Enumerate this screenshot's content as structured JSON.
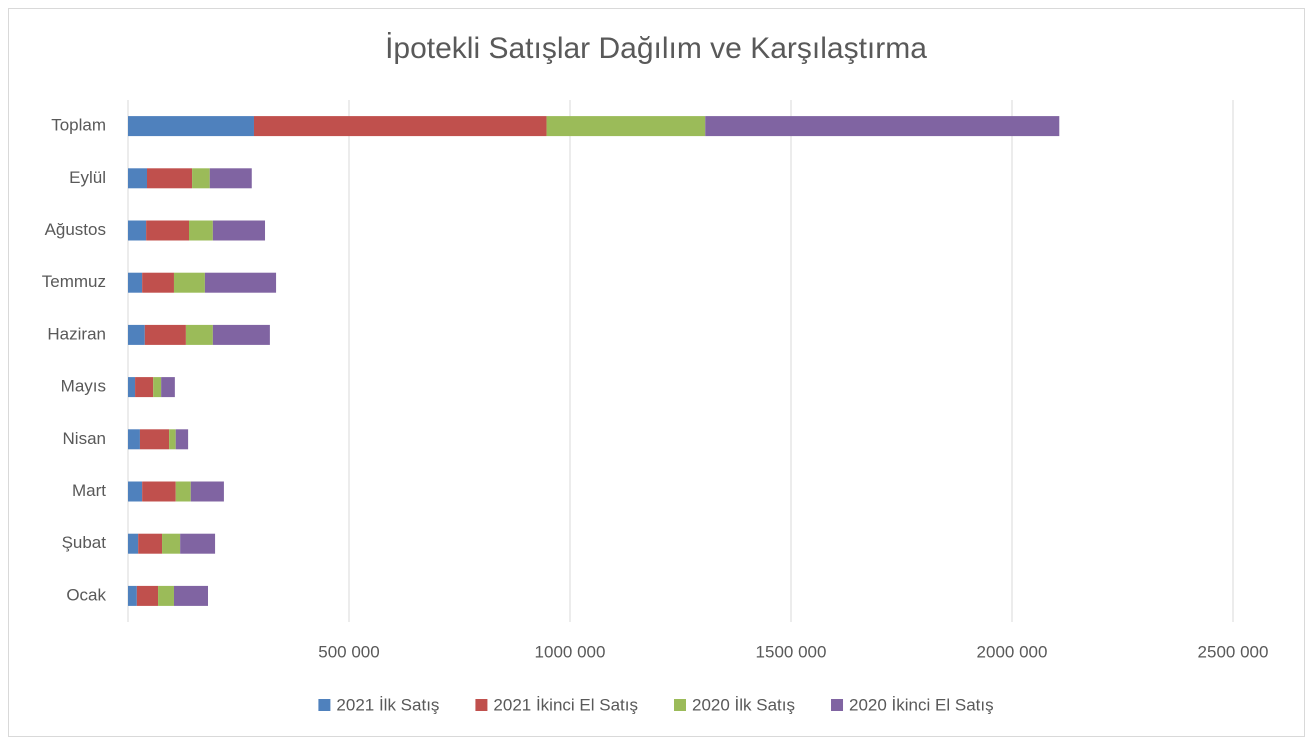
{
  "chart_data": {
    "type": "stacked-bar-horizontal",
    "title": "İpotekli Satışlar Dağılım ve Karşılaştırma",
    "categories": [
      "Toplam",
      "Eylül",
      "Ağustos",
      "Temmuz",
      "Haziran",
      "Mayıs",
      "Nisan",
      "Mart",
      "Şubat",
      "Ocak"
    ],
    "series": [
      {
        "name": "2021 İlk Satış",
        "color": "#4f81bd",
        "values": [
          285000,
          43000,
          41000,
          32000,
          38000,
          16000,
          27000,
          32000,
          23000,
          20000
        ]
      },
      {
        "name": "2021 İkinci El Satış",
        "color": "#c0504d",
        "values": [
          662000,
          102000,
          97000,
          72000,
          93000,
          41000,
          66000,
          76000,
          54000,
          48000
        ]
      },
      {
        "name": "2020 İlk Satış",
        "color": "#9bbb59",
        "values": [
          359000,
          40000,
          54000,
          70000,
          61000,
          18000,
          15000,
          34000,
          41000,
          36000
        ]
      },
      {
        "name": "2020 İkinci El Satış",
        "color": "#8064a2",
        "values": [
          801000,
          95000,
          118000,
          161000,
          129000,
          31000,
          28000,
          75000,
          79000,
          77000
        ]
      }
    ],
    "xlim": [
      0,
      2500000
    ],
    "xticks": [
      {
        "value": 500000,
        "label": "500 000"
      },
      {
        "value": 1000000,
        "label": "1000 000"
      },
      {
        "value": 1500000,
        "label": "1500 000"
      },
      {
        "value": 2000000,
        "label": "2000 000"
      },
      {
        "value": 2500000,
        "label": "2500 000"
      }
    ],
    "grid": true,
    "legend": "bottom"
  }
}
